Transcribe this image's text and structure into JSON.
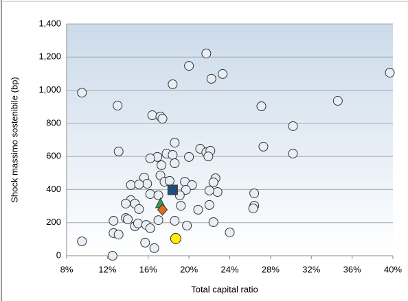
{
  "chart_data": {
    "type": "scatter",
    "xlabel": "Total capital ratio",
    "ylabel": "Shock massimo sostenibile (bp)",
    "xlim": [
      8,
      40
    ],
    "xticks": [
      {
        "value": 8,
        "label": "8%"
      },
      {
        "value": 12,
        "label": "12%"
      },
      {
        "value": 16,
        "label": "16%"
      },
      {
        "value": 20,
        "label": "20%"
      },
      {
        "value": 24,
        "label": "24%"
      },
      {
        "value": 28,
        "label": "28%"
      },
      {
        "value": 32,
        "label": "32%"
      },
      {
        "value": 36,
        "label": "36%"
      },
      {
        "value": 40,
        "label": "40%"
      }
    ],
    "ylim": [
      0,
      1400
    ],
    "yticks": [
      0,
      200,
      400,
      600,
      800,
      {
        "value": 1000,
        "label": "1,000"
      },
      {
        "value": 1200,
        "label": "1,200"
      },
      {
        "value": 1400,
        "label": "1,400"
      }
    ],
    "grid": true,
    "series": [
      {
        "color": "#e8eef6",
        "marker": "circle",
        "x": [
          9.5,
          21.7,
          20.0,
          23.3,
          22.2,
          39.7,
          18.4,
          13.0,
          27.1,
          34.6,
          16.4,
          17.2,
          17.4,
          30.2,
          18.6,
          27.3,
          30.2,
          13.1,
          21.1,
          21.7,
          22.1,
          21.9,
          20.0,
          17.8,
          18.4,
          16.9,
          16.2,
          18.6,
          17.3,
          17.2,
          15.6,
          22.6,
          22.4,
          17.6,
          18.1,
          19.6,
          20.3,
          15.9,
          14.3,
          15.1,
          26.4,
          22.8,
          22.0,
          19.7,
          19.1,
          16.2,
          17.0,
          14.3,
          14.7,
          13.8,
          15.1,
          20.9,
          22.0,
          19.2,
          26.4,
          26.3,
          13.8,
          14.0,
          12.6,
          14.7,
          15.0,
          15.8,
          16.2,
          17.0,
          18.6,
          19.8,
          22.4,
          12.6,
          13.1,
          24.0,
          9.5,
          15.7,
          16.6,
          12.5
        ],
        "values": [
          985,
          1222,
          1147,
          1098,
          1069,
          1106,
          1036,
          907,
          903,
          936,
          849,
          841,
          828,
          783,
          683,
          659,
          617,
          630,
          646,
          625,
          634,
          600,
          597,
          617,
          609,
          597,
          588,
          559,
          547,
          485,
          472,
          468,
          443,
          447,
          452,
          447,
          427,
          435,
          427,
          431,
          377,
          385,
          394,
          398,
          365,
          373,
          365,
          336,
          315,
          315,
          282,
          278,
          307,
          302,
          302,
          286,
          228,
          220,
          211,
          178,
          195,
          186,
          166,
          215,
          211,
          182,
          203,
          137,
          128,
          141,
          87,
          79,
          46,
          0
        ]
      },
      {
        "color": "#1f4e79",
        "marker": "square",
        "x": [
          18.4
        ],
        "values": [
          398
        ]
      },
      {
        "color": "#2e9e4a",
        "marker": "triangle",
        "x": [
          17.2
        ],
        "values": [
          315
        ]
      },
      {
        "color": "#e06c1f",
        "marker": "diamond",
        "x": [
          17.4
        ],
        "values": [
          278
        ]
      },
      {
        "color": "#ffee00",
        "marker": "circle",
        "x": [
          18.7
        ],
        "values": [
          104
        ]
      }
    ]
  }
}
